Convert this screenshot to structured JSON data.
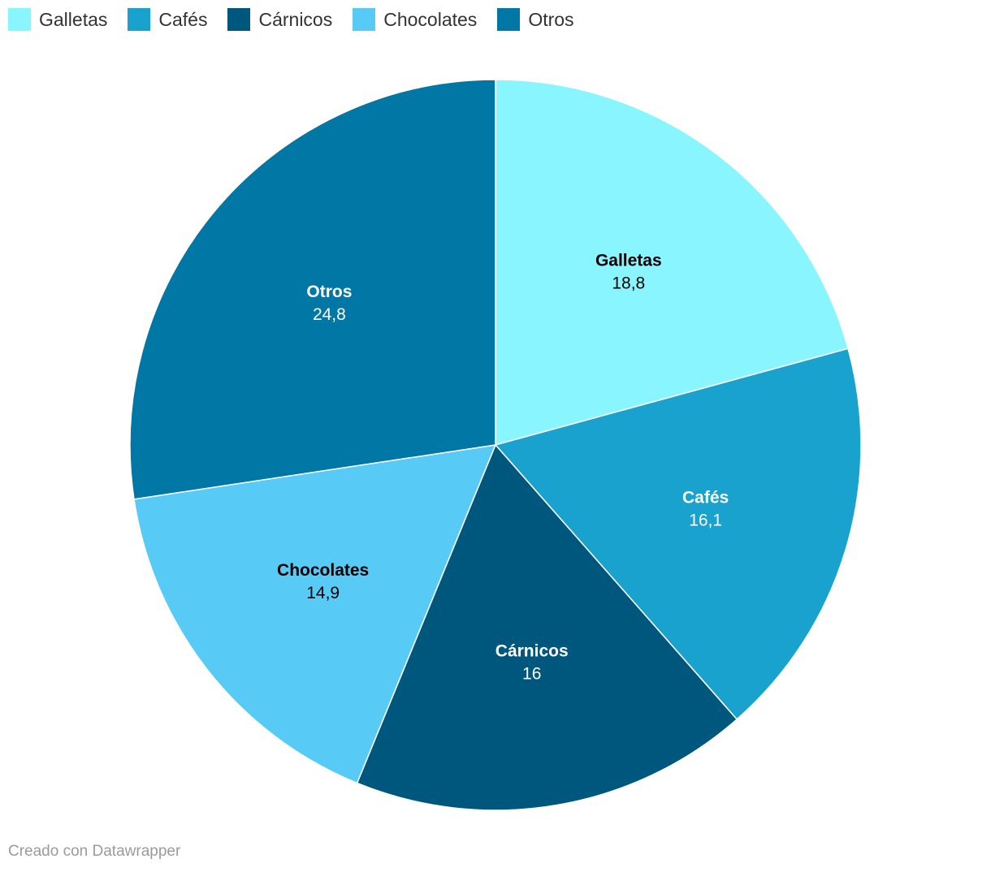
{
  "chart_data": {
    "type": "pie",
    "categories": [
      "Galletas",
      "Cafés",
      "Cárnicos",
      "Chocolates",
      "Otros"
    ],
    "values": [
      18.8,
      16.1,
      16,
      14.9,
      24.8
    ],
    "value_labels": [
      "18,8",
      "16,1",
      "16",
      "14,9",
      "24,8"
    ],
    "colors": [
      "#89f5ff",
      "#19a2ce",
      "#00577e",
      "#58caf6",
      "#0077a5"
    ],
    "label_colors": [
      "#000000",
      "#ffffff",
      "#ffffff",
      "#000000",
      "#ffffff"
    ],
    "legend": "top-left",
    "start_angle_deg": 0,
    "direction": "clockwise"
  },
  "legend": {
    "items": [
      {
        "label": "Galletas",
        "color": "#89f5ff"
      },
      {
        "label": "Cafés",
        "color": "#19a2ce"
      },
      {
        "label": "Cárnicos",
        "color": "#00577e"
      },
      {
        "label": "Chocolates",
        "color": "#58caf6"
      },
      {
        "label": "Otros",
        "color": "#0077a5"
      }
    ]
  },
  "footer": {
    "credit": "Creado con Datawrapper"
  }
}
